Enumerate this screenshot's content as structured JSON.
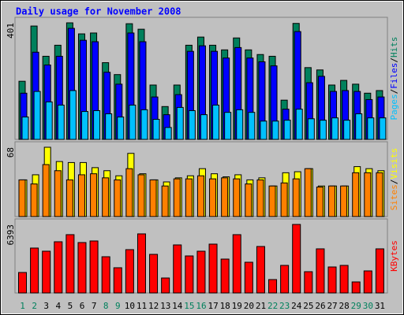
{
  "title": "Daily usage for November 2008",
  "separator": "/",
  "chart_data": [
    {
      "type": "bar",
      "ylim": [
        0,
        401
      ],
      "yticks": [
        401
      ],
      "series": [
        {
          "name": "Hits",
          "color": "#00805c",
          "values": [
            200,
            390,
            286,
            324,
            401,
            363,
            366,
            264,
            223,
            398,
            379,
            187,
            113,
            187,
            324,
            352,
            324,
            308,
            349,
            308,
            292,
            286,
            135,
            399,
            247,
            239,
            187,
            203,
            190,
            159,
            168
          ]
        },
        {
          "name": "Files",
          "color": "#0000ff",
          "values": [
            159,
            300,
            256,
            286,
            382,
            341,
            336,
            231,
            190,
            366,
            336,
            146,
            85,
            154,
            303,
            322,
            303,
            280,
            316,
            280,
            267,
            253,
            104,
            371,
            195,
            217,
            165,
            168,
            165,
            137,
            146
          ]
        },
        {
          "name": "Pages",
          "color": "#00c0ff",
          "values": [
            77,
            165,
            129,
            118,
            168,
            96,
            99,
            88,
            77,
            118,
            102,
            69,
            41,
            110,
            99,
            85,
            118,
            93,
            102,
            93,
            63,
            63,
            66,
            104,
            71,
            66,
            74,
            66,
            88,
            74,
            74
          ]
        }
      ]
    },
    {
      "type": "bar",
      "ylim": [
        0,
        68
      ],
      "yticks": [
        68
      ],
      "series": [
        {
          "name": "Visits",
          "color": "#ffff00",
          "values": [
            36,
            41,
            68,
            54,
            53,
            53,
            48,
            45,
            40,
            62,
            42,
            36,
            34,
            38,
            40,
            47,
            42,
            39,
            41,
            36,
            38,
            30,
            43,
            44,
            47,
            30,
            30,
            30,
            49,
            47,
            45
          ]
        },
        {
          "name": "Sites",
          "color": "#ff8000",
          "values": [
            36,
            32,
            51,
            45,
            36,
            41,
            42,
            38,
            36,
            47,
            41,
            36,
            30,
            37,
            37,
            40,
            37,
            38,
            37,
            32,
            36,
            30,
            33,
            37,
            47,
            29,
            30,
            30,
            43,
            43,
            43
          ]
        }
      ]
    },
    {
      "type": "bar",
      "ylim": [
        0,
        6393
      ],
      "yticks": [
        6393
      ],
      "categories": [
        "1",
        "2",
        "3",
        "4",
        "5",
        "6",
        "7",
        "8",
        "9",
        "10",
        "11",
        "12",
        "13",
        "14",
        "15",
        "16",
        "17",
        "18",
        "19",
        "20",
        "21",
        "22",
        "23",
        "24",
        "25",
        "26",
        "27",
        "28",
        "29",
        "30",
        "31"
      ],
      "category_colors": [
        "#00805c",
        "#00805c",
        "#000000",
        "#000000",
        "#000000",
        "#000000",
        "#000000",
        "#00805c",
        "#00805c",
        "#000000",
        "#000000",
        "#000000",
        "#000000",
        "#000000",
        "#00805c",
        "#00805c",
        "#000000",
        "#000000",
        "#000000",
        "#000000",
        "#000000",
        "#00805c",
        "#00805c",
        "#000000",
        "#000000",
        "#000000",
        "#000000",
        "#000000",
        "#00805c",
        "#00805c",
        "#000000"
      ],
      "series": [
        {
          "name": "KBytes",
          "color": "#ff0000",
          "values": [
            1910,
            4190,
            3895,
            4777,
            5440,
            4704,
            4851,
            3380,
            2352,
            4042,
            5513,
            3601,
            1396,
            4483,
            3454,
            3895,
            4557,
            3160,
            5440,
            2866,
            4336,
            1249,
            2572,
            6393,
            1984,
            4116,
            2425,
            2572,
            1029,
            2058,
            4116
          ]
        }
      ]
    }
  ]
}
